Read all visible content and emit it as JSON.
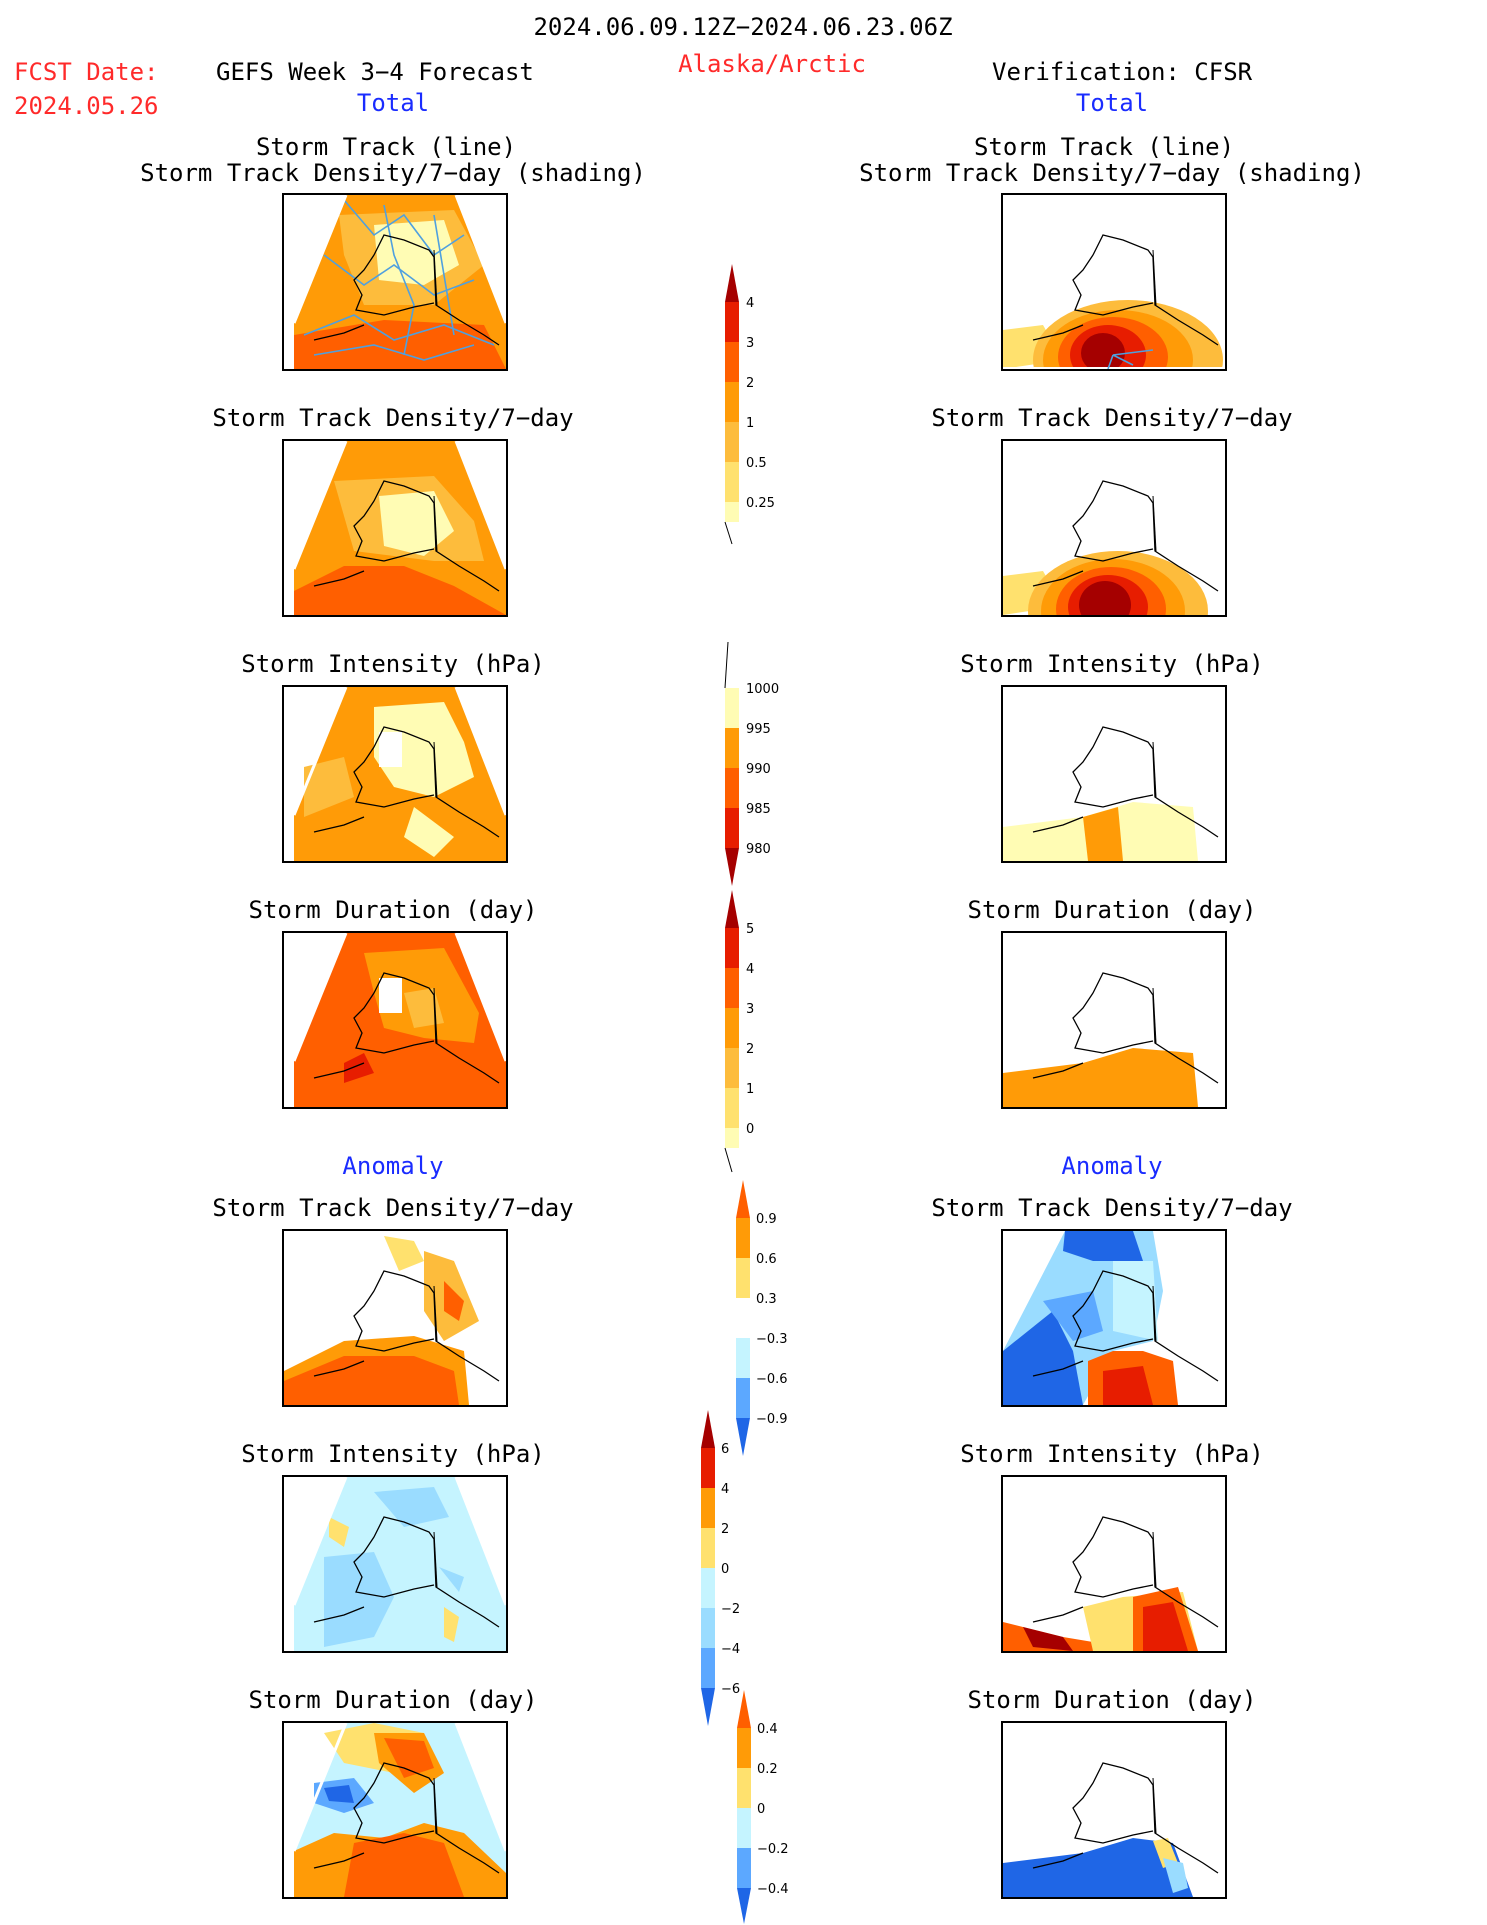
{
  "header": {
    "date_range": "2024.06.09.12Z−2024.06.23.06Z",
    "fcst_label": "FCST Date:",
    "fcst_date": "2024.05.26",
    "forecast_title": "GEFS Week 3−4 Forecast",
    "region": "Alaska/Arctic",
    "verification": "Verification: CFSR",
    "total_left": "Total",
    "total_right": "Total",
    "anomaly_left": "Anomaly",
    "anomaly_right": "Anomaly"
  },
  "panel_titles": {
    "track_line": "Storm Track (line)",
    "track_shading": "Storm Track Density/7−day (shading)",
    "density": "Storm Track Density/7−day",
    "intensity": "Storm Intensity (hPa)",
    "duration": "Storm Duration (day)"
  },
  "colors": {
    "pale_yellow": "#fffcb4",
    "light_yellow": "#ffe16e",
    "light_orange": "#fdbc3c",
    "orange": "#ff9b07",
    "dark_orange": "#ff5f00",
    "red": "#e71d00",
    "dark_red": "#a50000",
    "track_line": "#4fa0df",
    "pale_blue": "#c5f4ff",
    "light_blue": "#9adcff",
    "mid_blue": "#5ca8ff",
    "blue": "#1f66e6"
  },
  "colorbars": {
    "density_total": [
      "4",
      "3",
      "2",
      "1",
      "0.5",
      "0.25"
    ],
    "intensity_total": [
      "1000",
      "995",
      "990",
      "985",
      "980"
    ],
    "duration_total": [
      "5",
      "4",
      "3",
      "2",
      "1",
      "0"
    ],
    "density_anomaly": [
      "0.9",
      "0.6",
      "0.3",
      "−0.3",
      "−0.6",
      "−0.9"
    ],
    "intensity_anomaly": [
      "6",
      "4",
      "2",
      "0",
      "−2",
      "−4",
      "−6"
    ],
    "duration_anomaly": [
      "0.4",
      "0.2",
      "0",
      "−0.2",
      "−0.4"
    ]
  }
}
